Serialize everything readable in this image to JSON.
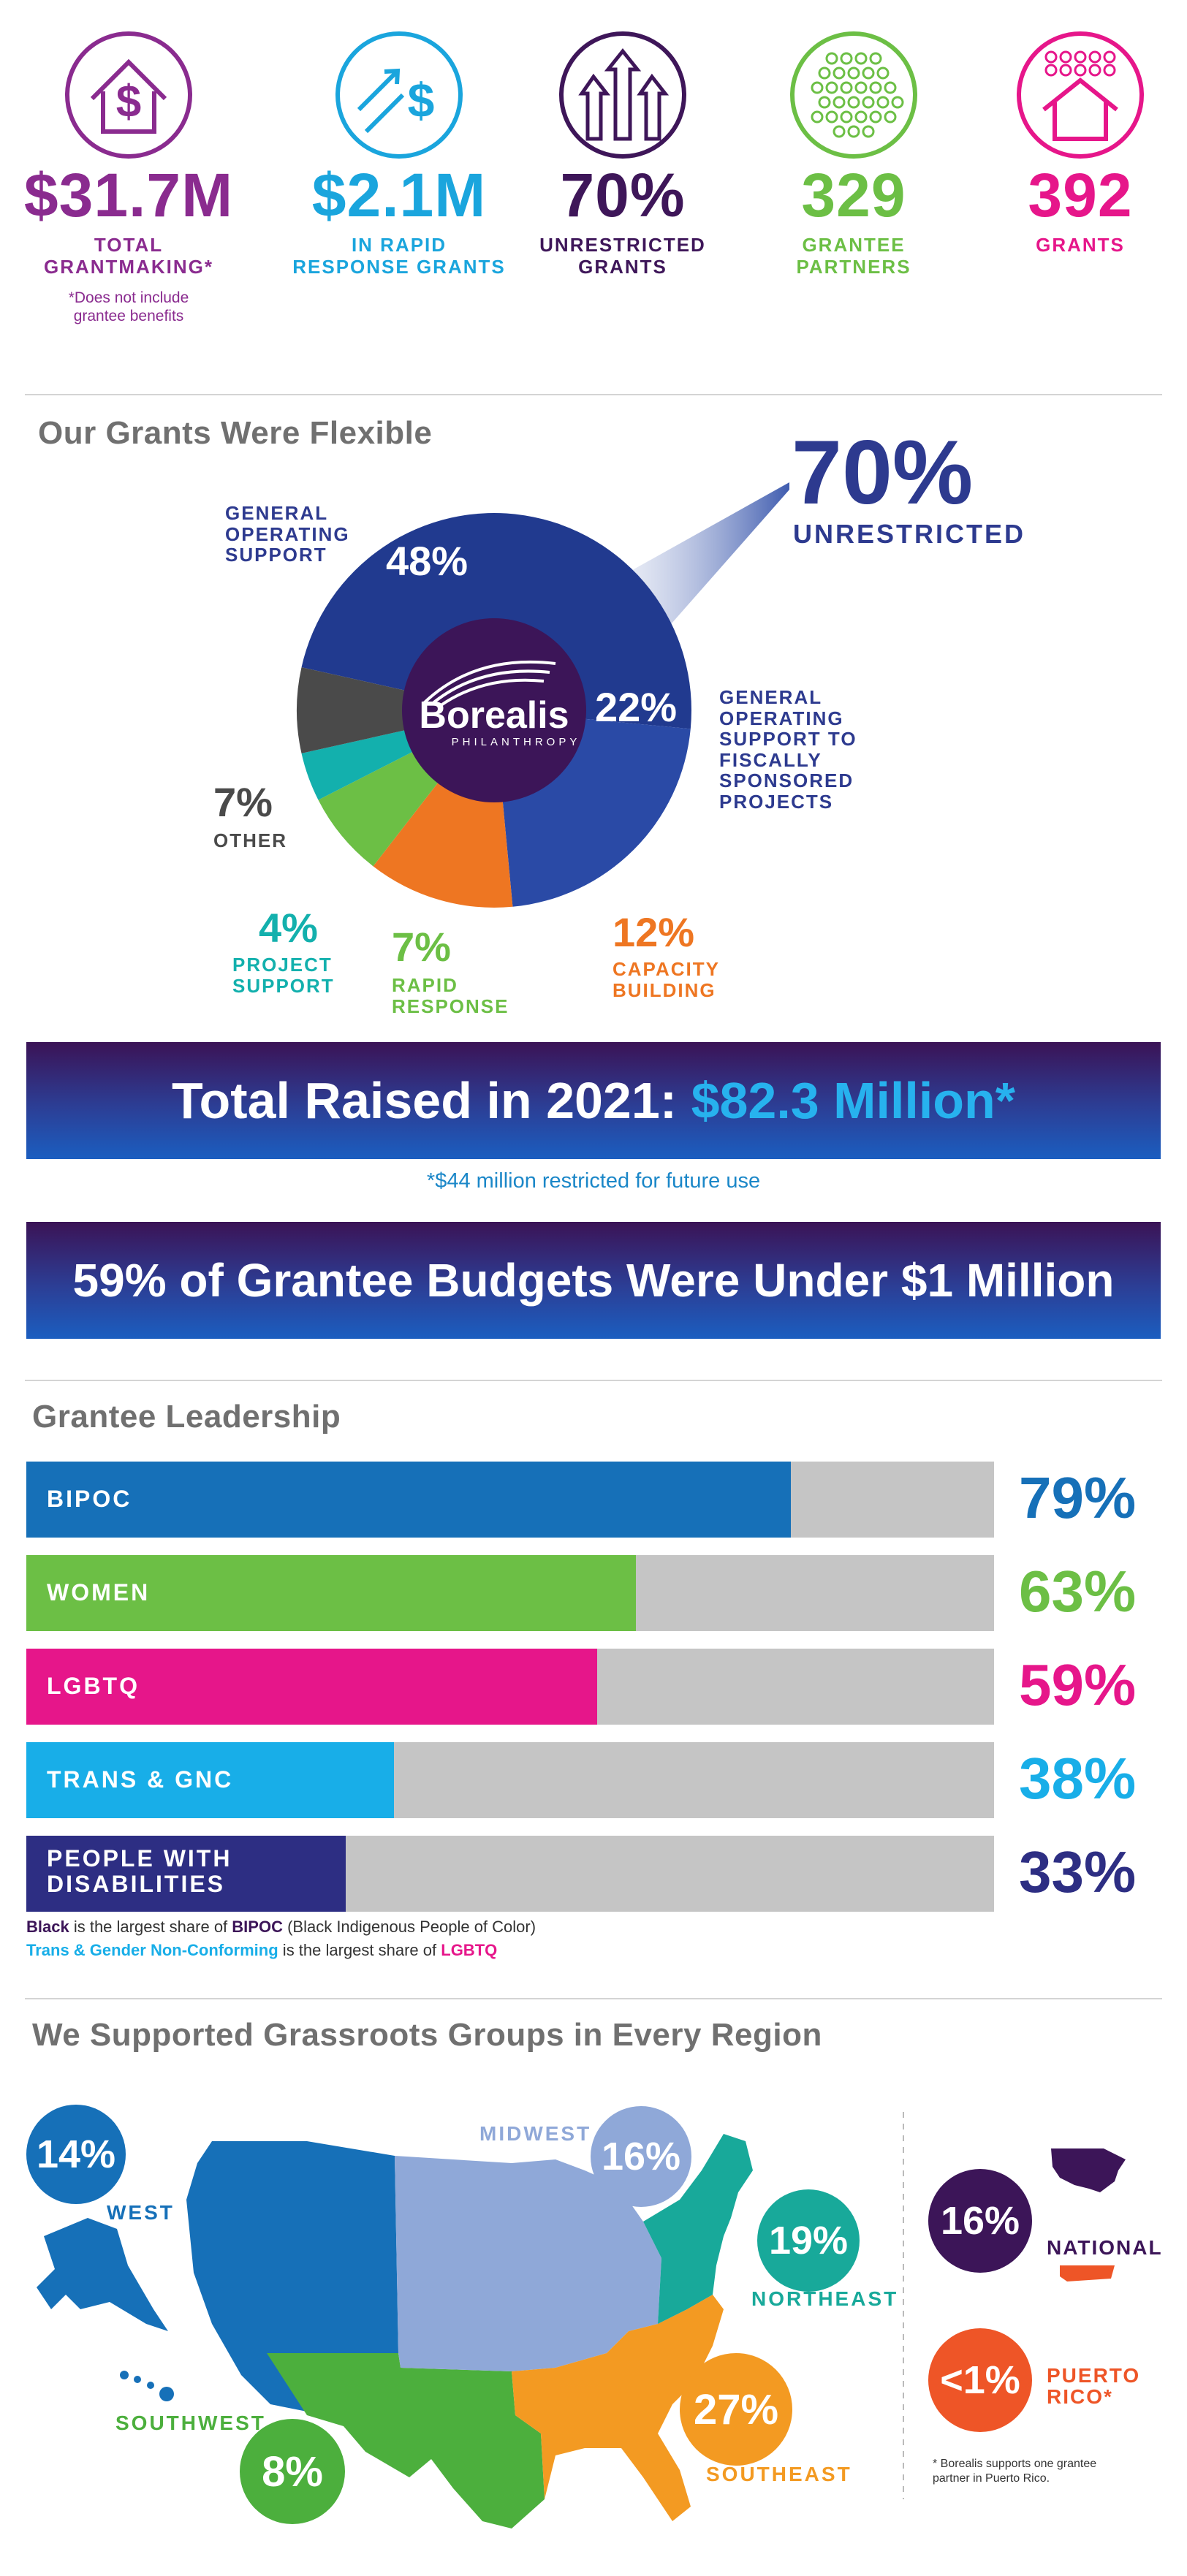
{
  "stats": [
    {
      "value": "$31.7M",
      "label_line1": "TOTAL",
      "label_line2": "GRANTMAKING*",
      "note_line1": "*Does not include",
      "note_line2": "grantee benefits",
      "color": "#8a2b8f",
      "icon": "dollar-house-icon"
    },
    {
      "value": "$2.1M",
      "label_line1": "IN RAPID",
      "label_line2": "RESPONSE GRANTS",
      "color": "#1aa5dd",
      "icon": "dollar-arrows-icon"
    },
    {
      "value": "70%",
      "label_line1": "UNRESTRICTED",
      "label_line2": "GRANTS",
      "color": "#3e1659",
      "icon": "three-arrows-up-icon"
    },
    {
      "value": "329",
      "label_line1": "GRANTEE",
      "label_line2": "PARTNERS",
      "color": "#6cbf45",
      "icon": "dots-circle-icon"
    },
    {
      "value": "392",
      "label_line1": "GRANTS",
      "label_line2": "",
      "color": "#e6168a",
      "icon": "dots-house-icon"
    }
  ],
  "flexible": {
    "title": "Our Grants Were Flexible",
    "callout_value": "70%",
    "callout_label": "UNRESTRICTED",
    "logo_name": "Borealis",
    "logo_sub": "PHILANTHROPY",
    "labels": {
      "gos": [
        "GENERAL",
        "OPERATING",
        "SUPPORT"
      ],
      "fiscal": [
        "GENERAL",
        "OPERATING",
        "SUPPORT TO",
        "FISCALLY",
        "SPONSORED",
        "PROJECTS"
      ],
      "other": [
        "OTHER"
      ],
      "project": [
        "PROJECT",
        "SUPPORT"
      ],
      "rapid": [
        "RAPID",
        "RESPONSE"
      ],
      "capacity": [
        "CAPACITY",
        "BUILDING"
      ]
    },
    "pct": {
      "gos": "48%",
      "fiscal": "22%",
      "other": "7%",
      "project": "4%",
      "rapid": "7%",
      "capacity": "12%"
    }
  },
  "raised": {
    "prefix": "Total Raised in 2021: ",
    "amount": "$82.3 Million*",
    "note": "*$44 million restricted for future use"
  },
  "budgets_banner": "59% of Grantee Budgets Were Under $1 Million",
  "leadership": {
    "title": "Grantee Leadership",
    "notes": {
      "line1_a": "Black",
      "line1_b": " is the largest share of ",
      "line1_c": "BIPOC",
      "line1_d": " (Black Indigenous People of Color)",
      "line2_a": "Trans & Gender Non-Conforming",
      "line2_b": " is the largest share of ",
      "line2_c": "LGBTQ"
    }
  },
  "regions": {
    "title": "We Supported Grassroots Groups in Every Region",
    "west": {
      "label": "WEST",
      "pct": "14%"
    },
    "midwest": {
      "label": "MIDWEST",
      "pct": "16%"
    },
    "northeast": {
      "label": "NORTHEAST",
      "pct": "19%"
    },
    "southwest": {
      "label": "SOUTHWEST",
      "pct": "8%"
    },
    "southeast": {
      "label": "SOUTHEAST",
      "pct": "27%"
    },
    "national": {
      "label": "NATIONAL",
      "pct": "16%"
    },
    "puerto_rico": {
      "label_line1": "PUERTO",
      "label_line2": "RICO*",
      "pct": "<1%"
    },
    "footnote_line1": "* Borealis supports one grantee",
    "footnote_line2": "partner in Puerto Rico."
  },
  "chart_data": [
    {
      "type": "pie",
      "title": "Our Grants Were Flexible",
      "categories": [
        "General Operating Support",
        "General Operating Support to Fiscally Sponsored Projects",
        "Capacity Building",
        "Rapid Response",
        "Project Support",
        "Other"
      ],
      "values": [
        48,
        22,
        12,
        7,
        4,
        7
      ],
      "colors": [
        "#213a8f",
        "#2a4aa6",
        "#ee7622",
        "#6cbf45",
        "#13b0ad",
        "#4a4a4a"
      ]
    },
    {
      "type": "bar",
      "title": "Grantee Leadership",
      "categories": [
        "BIPOC",
        "WOMEN",
        "LGBTQ",
        "TRANS & GNC",
        "PEOPLE WITH DISABILITIES"
      ],
      "values": [
        79,
        63,
        59,
        38,
        33
      ],
      "value_labels": [
        "79%",
        "63%",
        "59%",
        "38%",
        "33%"
      ],
      "colors": [
        "#1670b8",
        "#6cbf45",
        "#e6168a",
        "#18aee8",
        "#2d2e83"
      ],
      "ylim": [
        0,
        100
      ]
    }
  ]
}
